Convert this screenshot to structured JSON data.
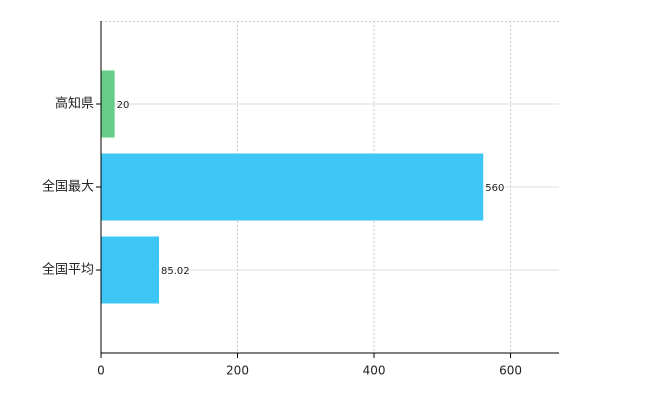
{
  "chart_data": {
    "type": "hbar",
    "categories": [
      "高知県",
      "全国最大",
      "全国平均"
    ],
    "values": [
      20,
      560,
      85.02
    ],
    "colors": [
      "#66cc88",
      "#3ec6f6",
      "#3ec6f6"
    ],
    "xlim": [
      0,
      671
    ],
    "xticks": [
      0,
      200,
      400,
      600
    ],
    "grid": true
  }
}
